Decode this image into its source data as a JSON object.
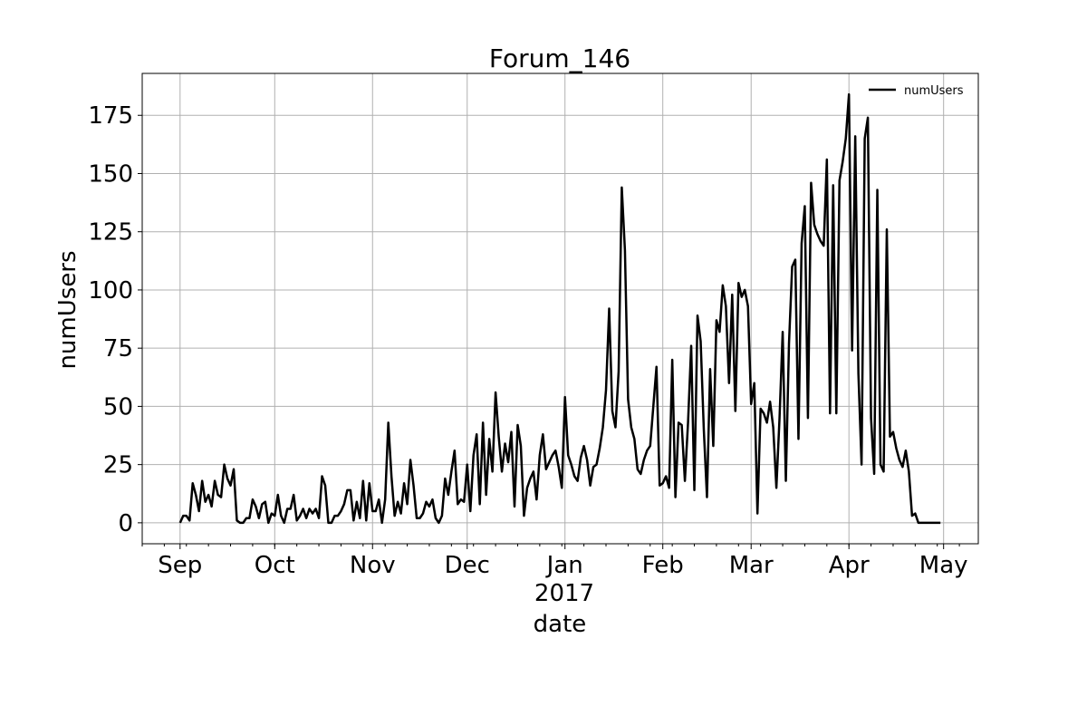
{
  "chart_data": {
    "type": "line",
    "title": "Forum_146",
    "xlabel": "date",
    "ylabel": "numUsers",
    "year_label": "2017",
    "x_ticks": [
      {
        "label": "Sep",
        "date": "2016-09-01"
      },
      {
        "label": "Oct",
        "date": "2016-10-01"
      },
      {
        "label": "Nov",
        "date": "2016-11-01"
      },
      {
        "label": "Dec",
        "date": "2016-12-01"
      },
      {
        "label": "Jan",
        "date": "2017-01-01"
      },
      {
        "label": "Feb",
        "date": "2017-02-01"
      },
      {
        "label": "Mar",
        "date": "2017-03-01"
      },
      {
        "label": "Apr",
        "date": "2017-04-01"
      },
      {
        "label": "May",
        "date": "2017-05-01"
      }
    ],
    "y_ticks": [
      0,
      25,
      50,
      75,
      100,
      125,
      150,
      175
    ],
    "xlim": [
      "2016-08-20",
      "2017-05-12"
    ],
    "ylim": [
      -9,
      193
    ],
    "grid": true,
    "legend_position": "upper-right",
    "series": [
      {
        "name": "numUsers",
        "color": "#000000",
        "x": [
          "2016-09-01",
          "2016-09-02",
          "2016-09-03",
          "2016-09-04",
          "2016-09-05",
          "2016-09-06",
          "2016-09-07",
          "2016-09-08",
          "2016-09-09",
          "2016-09-10",
          "2016-09-11",
          "2016-09-12",
          "2016-09-13",
          "2016-09-14",
          "2016-09-15",
          "2016-09-16",
          "2016-09-17",
          "2016-09-18",
          "2016-09-19",
          "2016-09-20",
          "2016-09-21",
          "2016-09-22",
          "2016-09-23",
          "2016-09-24",
          "2016-09-25",
          "2016-09-26",
          "2016-09-27",
          "2016-09-28",
          "2016-09-29",
          "2016-09-30",
          "2016-10-01",
          "2016-10-02",
          "2016-10-03",
          "2016-10-04",
          "2016-10-05",
          "2016-10-06",
          "2016-10-07",
          "2016-10-08",
          "2016-10-09",
          "2016-10-10",
          "2016-10-11",
          "2016-10-12",
          "2016-10-13",
          "2016-10-14",
          "2016-10-15",
          "2016-10-16",
          "2016-10-17",
          "2016-10-18",
          "2016-10-19",
          "2016-10-20",
          "2016-10-21",
          "2016-10-22",
          "2016-10-23",
          "2016-10-24",
          "2016-10-25",
          "2016-10-26",
          "2016-10-27",
          "2016-10-28",
          "2016-10-29",
          "2016-10-30",
          "2016-10-31",
          "2016-11-01",
          "2016-11-02",
          "2016-11-03",
          "2016-11-04",
          "2016-11-05",
          "2016-11-06",
          "2016-11-07",
          "2016-11-08",
          "2016-11-09",
          "2016-11-10",
          "2016-11-11",
          "2016-11-12",
          "2016-11-13",
          "2016-11-14",
          "2016-11-15",
          "2016-11-16",
          "2016-11-17",
          "2016-11-18",
          "2016-11-19",
          "2016-11-20",
          "2016-11-21",
          "2016-11-22",
          "2016-11-23",
          "2016-11-24",
          "2016-11-25",
          "2016-11-26",
          "2016-11-27",
          "2016-11-28",
          "2016-11-29",
          "2016-11-30",
          "2016-12-01",
          "2016-12-02",
          "2016-12-03",
          "2016-12-04",
          "2016-12-05",
          "2016-12-06",
          "2016-12-07",
          "2016-12-08",
          "2016-12-09",
          "2016-12-10",
          "2016-12-11",
          "2016-12-12",
          "2016-12-13",
          "2016-12-14",
          "2016-12-15",
          "2016-12-16",
          "2016-12-17",
          "2016-12-18",
          "2016-12-19",
          "2016-12-20",
          "2016-12-21",
          "2016-12-22",
          "2016-12-23",
          "2016-12-24",
          "2016-12-25",
          "2016-12-26",
          "2016-12-27",
          "2016-12-28",
          "2016-12-29",
          "2016-12-30",
          "2016-12-31",
          "2017-01-01",
          "2017-01-02",
          "2017-01-03",
          "2017-01-04",
          "2017-01-05",
          "2017-01-06",
          "2017-01-07",
          "2017-01-08",
          "2017-01-09",
          "2017-01-10",
          "2017-01-11",
          "2017-01-12",
          "2017-01-13",
          "2017-01-14",
          "2017-01-15",
          "2017-01-16",
          "2017-01-17",
          "2017-01-18",
          "2017-01-19",
          "2017-01-20",
          "2017-01-21",
          "2017-01-22",
          "2017-01-23",
          "2017-01-24",
          "2017-01-25",
          "2017-01-26",
          "2017-01-27",
          "2017-01-28",
          "2017-01-29",
          "2017-01-30",
          "2017-01-31",
          "2017-02-01",
          "2017-02-02",
          "2017-02-03",
          "2017-02-04",
          "2017-02-05",
          "2017-02-06",
          "2017-02-07",
          "2017-02-08",
          "2017-02-09",
          "2017-02-10",
          "2017-02-11",
          "2017-02-12",
          "2017-02-13",
          "2017-02-14",
          "2017-02-15",
          "2017-02-16",
          "2017-02-17",
          "2017-02-18",
          "2017-02-19",
          "2017-02-20",
          "2017-02-21",
          "2017-02-22",
          "2017-02-23",
          "2017-02-24",
          "2017-02-25",
          "2017-02-26",
          "2017-02-27",
          "2017-02-28",
          "2017-03-01",
          "2017-03-02",
          "2017-03-03",
          "2017-03-04",
          "2017-03-05",
          "2017-03-06",
          "2017-03-07",
          "2017-03-08",
          "2017-03-09",
          "2017-03-10",
          "2017-03-11",
          "2017-03-12",
          "2017-03-13",
          "2017-03-14",
          "2017-03-15",
          "2017-03-16",
          "2017-03-17",
          "2017-03-18",
          "2017-03-19",
          "2017-03-20",
          "2017-03-21",
          "2017-03-22",
          "2017-03-23",
          "2017-03-24",
          "2017-03-25",
          "2017-03-26",
          "2017-03-27",
          "2017-03-28",
          "2017-03-29",
          "2017-03-30",
          "2017-03-31",
          "2017-04-01",
          "2017-04-02",
          "2017-04-03",
          "2017-04-04",
          "2017-04-05",
          "2017-04-06",
          "2017-04-07",
          "2017-04-08",
          "2017-04-09",
          "2017-04-10",
          "2017-04-11",
          "2017-04-12",
          "2017-04-13",
          "2017-04-14",
          "2017-04-15",
          "2017-04-16",
          "2017-04-17",
          "2017-04-18",
          "2017-04-19",
          "2017-04-20",
          "2017-04-21",
          "2017-04-22",
          "2017-04-23",
          "2017-04-24",
          "2017-04-25",
          "2017-04-26",
          "2017-04-27",
          "2017-04-28",
          "2017-04-29",
          "2017-04-30"
        ],
        "values": [
          0,
          3,
          3,
          1,
          17,
          12,
          5,
          18,
          9,
          12,
          7,
          18,
          12,
          11,
          25,
          19,
          16,
          23,
          1,
          0,
          0,
          2,
          2,
          10,
          7,
          2,
          8,
          9,
          0,
          4,
          3,
          12,
          3,
          0,
          6,
          6,
          12,
          1,
          3,
          6,
          2,
          6,
          4,
          6,
          2,
          20,
          16,
          0,
          0,
          3,
          3,
          5,
          8,
          14,
          14,
          1,
          9,
          2,
          18,
          1,
          17,
          5,
          5,
          10,
          0,
          10,
          43,
          20,
          3,
          9,
          4,
          17,
          8,
          27,
          16,
          2,
          2,
          4,
          9,
          7,
          10,
          2,
          0,
          3,
          19,
          12,
          22,
          31,
          8,
          10,
          9,
          25,
          5,
          29,
          38,
          8,
          43,
          12,
          36,
          22,
          56,
          37,
          22,
          34,
          26,
          39,
          7,
          42,
          33,
          3,
          15,
          19,
          22,
          10,
          29,
          38,
          23,
          26,
          29,
          31,
          24,
          15,
          54,
          29,
          25,
          20,
          18,
          28,
          33,
          27,
          16,
          24,
          25,
          32,
          41,
          57,
          92,
          48,
          41,
          65,
          144,
          117,
          53,
          41,
          36,
          23,
          21,
          27,
          31,
          33,
          50,
          67,
          16,
          17,
          20,
          15,
          70,
          11,
          43,
          42,
          18,
          43,
          76,
          14,
          89,
          78,
          40,
          11,
          66,
          33,
          87,
          82,
          102,
          93,
          60,
          98,
          48,
          103,
          97,
          100,
          93,
          51,
          60,
          4,
          49,
          47,
          43,
          52,
          41,
          15,
          45,
          82,
          18,
          77,
          110,
          113,
          36,
          120,
          136,
          45,
          146,
          128,
          124,
          121,
          119,
          156,
          47,
          145,
          47,
          147,
          155,
          165,
          184,
          74,
          166,
          64,
          25,
          165,
          174,
          45,
          21,
          143,
          25,
          22,
          126,
          37,
          39,
          32,
          27,
          24,
          31,
          22,
          3,
          4,
          0,
          0,
          0,
          0,
          0,
          0,
          0,
          0
        ]
      }
    ]
  }
}
